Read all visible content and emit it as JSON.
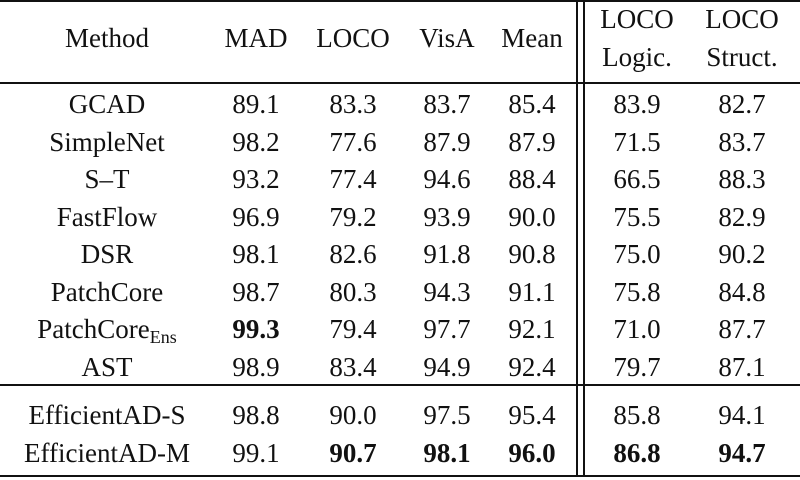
{
  "table": {
    "headers": [
      [
        "Method"
      ],
      [
        "MAD"
      ],
      [
        "LOCO"
      ],
      [
        "VisA"
      ],
      [
        "Mean"
      ],
      [
        "LOCO",
        "Logic."
      ],
      [
        "LOCO",
        "Struct."
      ]
    ],
    "groups": [
      [
        {
          "method": "GCAD",
          "values": [
            "89.1",
            "83.3",
            "83.7",
            "85.4",
            "83.9",
            "82.7"
          ],
          "bold": []
        },
        {
          "method": "SimpleNet",
          "values": [
            "98.2",
            "77.6",
            "87.9",
            "87.9",
            "71.5",
            "83.7"
          ],
          "bold": []
        },
        {
          "method": "S–T",
          "values": [
            "93.2",
            "77.4",
            "94.6",
            "88.4",
            "66.5",
            "88.3"
          ],
          "bold": []
        },
        {
          "method": "FastFlow",
          "values": [
            "96.9",
            "79.2",
            "93.9",
            "90.0",
            "75.5",
            "82.9"
          ],
          "bold": []
        },
        {
          "method": "DSR",
          "values": [
            "98.1",
            "82.6",
            "91.8",
            "90.8",
            "75.0",
            "90.2"
          ],
          "bold": []
        },
        {
          "method": "PatchCore",
          "values": [
            "98.7",
            "80.3",
            "94.3",
            "91.1",
            "75.8",
            "84.8"
          ],
          "bold": []
        },
        {
          "method": "PatchCore",
          "method_sub": "Ens",
          "values": [
            "99.3",
            "79.4",
            "97.7",
            "92.1",
            "71.0",
            "87.7"
          ],
          "bold": [
            0
          ]
        },
        {
          "method": "AST",
          "values": [
            "98.9",
            "83.4",
            "94.9",
            "92.4",
            "79.7",
            "87.1"
          ],
          "bold": []
        }
      ],
      [
        {
          "method": "EfficientAD-S",
          "values": [
            "98.8",
            "90.0",
            "97.5",
            "95.4",
            "85.8",
            "94.1"
          ],
          "bold": []
        },
        {
          "method": "EfficientAD-M",
          "values": [
            "99.1",
            "90.7",
            "98.1",
            "96.0",
            "86.8",
            "94.7"
          ],
          "bold": [
            1,
            2,
            3,
            4,
            5
          ]
        }
      ]
    ]
  }
}
